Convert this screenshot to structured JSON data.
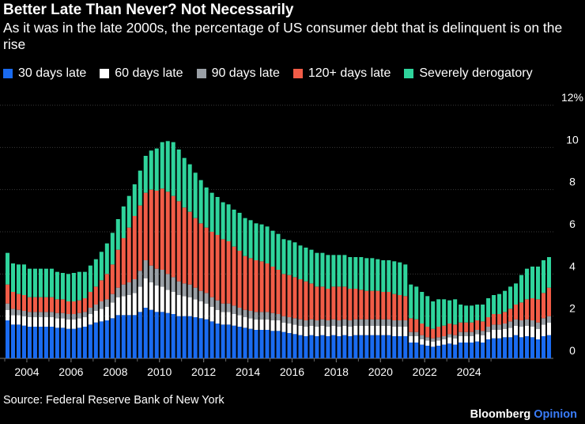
{
  "title": "Better Late Than Never? Not Necessarily",
  "subtitle": "As it was in the late 2000s, the percentage of US consumer debt that is delinquent is on the rise",
  "source": "Source: Federal Reserve Bank of New York",
  "brand": {
    "name": "Bloomberg",
    "suffix": "Opinion"
  },
  "chart_data": {
    "type": "bar",
    "stacked": true,
    "grid": true,
    "legend_position": "top",
    "ylim": [
      0,
      12
    ],
    "y_ticks": [
      "0",
      "2",
      "4",
      "6",
      "8",
      "10",
      "12%"
    ],
    "x_tick_labels": [
      "2004",
      "2006",
      "2008",
      "2010",
      "2012",
      "2014",
      "2016",
      "2018",
      "2020",
      "2022",
      "2024"
    ],
    "x_start_year": 2003,
    "x_start_quarter": 1,
    "series": [
      {
        "name": "30 days late",
        "color": "#1a6bf0",
        "values": [
          1.8,
          1.6,
          1.6,
          1.55,
          1.5,
          1.5,
          1.5,
          1.5,
          1.5,
          1.45,
          1.45,
          1.4,
          1.4,
          1.45,
          1.5,
          1.6,
          1.7,
          1.75,
          1.8,
          1.9,
          2.05,
          2.05,
          2.05,
          2.05,
          2.2,
          2.4,
          2.3,
          2.2,
          2.2,
          2.15,
          2.1,
          2.0,
          2.0,
          2.0,
          1.95,
          1.9,
          1.85,
          1.75,
          1.65,
          1.6,
          1.6,
          1.55,
          1.5,
          1.45,
          1.4,
          1.35,
          1.35,
          1.35,
          1.3,
          1.3,
          1.25,
          1.2,
          1.15,
          1.1,
          1.05,
          1.1,
          1.05,
          1.1,
          1.05,
          1.1,
          1.05,
          1.1,
          1.05,
          1.1,
          1.1,
          1.1,
          1.1,
          1.1,
          1.1,
          1.1,
          1.05,
          1.05,
          1.05,
          0.75,
          0.75,
          0.65,
          0.6,
          0.55,
          0.6,
          0.65,
          0.7,
          0.65,
          0.75,
          0.75,
          0.75,
          0.8,
          0.75,
          0.9,
          0.95,
          0.95,
          1.0,
          1.0,
          1.1,
          1.0,
          1.05,
          1.0,
          0.9,
          1.05,
          1.1
        ]
      },
      {
        "name": "60 days late",
        "color": "#ffffff",
        "values": [
          0.5,
          0.45,
          0.45,
          0.45,
          0.45,
          0.45,
          0.45,
          0.45,
          0.45,
          0.45,
          0.45,
          0.45,
          0.45,
          0.45,
          0.45,
          0.5,
          0.55,
          0.6,
          0.65,
          0.75,
          0.85,
          0.9,
          0.95,
          1.05,
          1.2,
          1.4,
          1.3,
          1.25,
          1.2,
          1.1,
          1.05,
          1.0,
          0.95,
          0.9,
          0.85,
          0.8,
          0.75,
          0.7,
          0.65,
          0.6,
          0.6,
          0.55,
          0.55,
          0.5,
          0.5,
          0.5,
          0.5,
          0.5,
          0.5,
          0.5,
          0.45,
          0.45,
          0.45,
          0.45,
          0.45,
          0.45,
          0.45,
          0.45,
          0.45,
          0.45,
          0.45,
          0.45,
          0.45,
          0.45,
          0.45,
          0.45,
          0.45,
          0.45,
          0.45,
          0.45,
          0.45,
          0.45,
          0.45,
          0.3,
          0.3,
          0.25,
          0.25,
          0.25,
          0.25,
          0.25,
          0.3,
          0.3,
          0.3,
          0.3,
          0.3,
          0.35,
          0.35,
          0.35,
          0.4,
          0.4,
          0.4,
          0.45,
          0.45,
          0.5,
          0.5,
          0.5,
          0.5,
          0.55,
          0.6
        ]
      },
      {
        "name": "90 days late",
        "color": "#9aa0a6",
        "values": [
          0.3,
          0.3,
          0.25,
          0.25,
          0.25,
          0.25,
          0.25,
          0.25,
          0.25,
          0.25,
          0.25,
          0.25,
          0.25,
          0.25,
          0.25,
          0.3,
          0.3,
          0.35,
          0.35,
          0.4,
          0.45,
          0.55,
          0.6,
          0.65,
          0.75,
          0.85,
          0.8,
          0.8,
          0.8,
          0.75,
          0.7,
          0.65,
          0.6,
          0.6,
          0.55,
          0.5,
          0.5,
          0.45,
          0.45,
          0.4,
          0.4,
          0.4,
          0.35,
          0.35,
          0.35,
          0.35,
          0.35,
          0.35,
          0.35,
          0.3,
          0.3,
          0.3,
          0.3,
          0.3,
          0.3,
          0.3,
          0.3,
          0.3,
          0.3,
          0.3,
          0.3,
          0.3,
          0.3,
          0.3,
          0.3,
          0.3,
          0.3,
          0.3,
          0.3,
          0.3,
          0.3,
          0.3,
          0.3,
          0.2,
          0.2,
          0.2,
          0.15,
          0.15,
          0.15,
          0.15,
          0.15,
          0.15,
          0.2,
          0.2,
          0.2,
          0.2,
          0.2,
          0.25,
          0.25,
          0.25,
          0.25,
          0.3,
          0.3,
          0.3,
          0.3,
          0.3,
          0.3,
          0.3,
          0.3
        ]
      },
      {
        "name": "120+ days late",
        "color": "#f15c47",
        "values": [
          0.9,
          0.8,
          0.75,
          0.75,
          0.7,
          0.7,
          0.7,
          0.7,
          0.7,
          0.65,
          0.65,
          0.6,
          0.6,
          0.6,
          0.65,
          0.75,
          0.85,
          1.0,
          1.2,
          1.4,
          1.8,
          2.2,
          2.6,
          3.0,
          3.1,
          3.2,
          3.6,
          3.7,
          3.85,
          3.9,
          3.85,
          3.8,
          3.6,
          3.45,
          3.3,
          3.2,
          3.1,
          3.1,
          3.1,
          3.05,
          2.95,
          2.8,
          2.7,
          2.55,
          2.5,
          2.45,
          2.4,
          2.3,
          2.2,
          2.1,
          2.0,
          2.0,
          1.95,
          1.9,
          1.85,
          1.7,
          1.6,
          1.55,
          1.5,
          1.55,
          1.6,
          1.55,
          1.5,
          1.45,
          1.4,
          1.35,
          1.35,
          1.35,
          1.3,
          1.3,
          1.25,
          1.2,
          1.15,
          0.65,
          0.6,
          0.55,
          0.5,
          0.45,
          0.5,
          0.5,
          0.5,
          0.5,
          0.45,
          0.45,
          0.45,
          0.45,
          0.45,
          0.45,
          0.5,
          0.5,
          0.55,
          0.6,
          0.7,
          0.85,
          0.95,
          1.05,
          1.1,
          1.2,
          1.35
        ]
      },
      {
        "name": "Severely derogatory",
        "color": "#2fd49c",
        "values": [
          1.5,
          1.35,
          1.4,
          1.45,
          1.35,
          1.35,
          1.35,
          1.35,
          1.35,
          1.3,
          1.25,
          1.3,
          1.35,
          1.35,
          1.25,
          1.25,
          1.3,
          1.35,
          1.45,
          1.5,
          1.45,
          1.5,
          1.5,
          1.5,
          1.65,
          1.75,
          1.85,
          2.0,
          2.2,
          2.4,
          2.55,
          2.45,
          2.35,
          2.25,
          2.15,
          2.05,
          1.9,
          1.85,
          1.8,
          1.75,
          1.75,
          1.75,
          1.8,
          1.8,
          1.8,
          1.75,
          1.75,
          1.75,
          1.7,
          1.7,
          1.65,
          1.65,
          1.65,
          1.6,
          1.6,
          1.6,
          1.6,
          1.6,
          1.6,
          1.5,
          1.5,
          1.5,
          1.5,
          1.5,
          1.55,
          1.55,
          1.55,
          1.5,
          1.5,
          1.5,
          1.55,
          1.55,
          1.5,
          1.6,
          1.55,
          1.5,
          1.45,
          1.3,
          1.3,
          1.25,
          1.1,
          1.2,
          0.85,
          0.8,
          0.8,
          0.75,
          0.8,
          0.9,
          0.9,
          0.95,
          1.0,
          1.05,
          1.0,
          1.3,
          1.45,
          1.5,
          1.55,
          1.55,
          1.45
        ]
      }
    ]
  }
}
